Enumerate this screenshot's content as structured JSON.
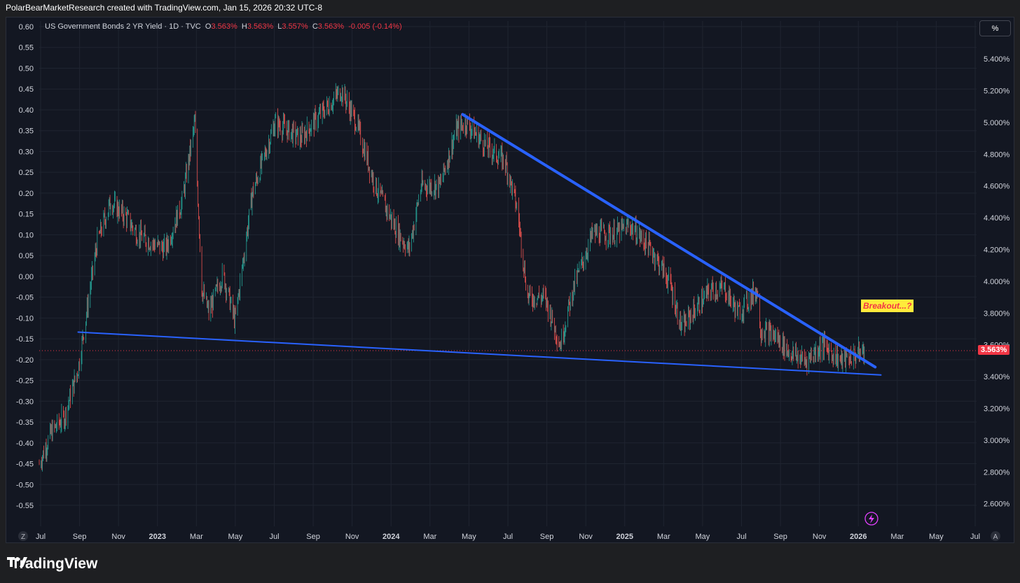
{
  "header": {
    "credit": "PolarBearMarketResearch created with TradingView.com, Jan 15, 2026 20:32 UTC-8"
  },
  "legend": {
    "symbol": "US Government Bonds 2 YR Yield · 1D · TVC",
    "o_label": "O",
    "o_value": "3.563%",
    "h_label": "H",
    "h_value": "3.563%",
    "l_label": "L",
    "l_value": "3.557%",
    "c_label": "C",
    "c_value": "3.563%",
    "change": "-0.005 (-0.14%)"
  },
  "scale_button": "%",
  "last_price_label": "3.563%",
  "annotation": "Breakout...?",
  "footer": {
    "brand": "TradingView"
  },
  "corner_left": "Z",
  "corner_right": "A",
  "colors": {
    "up": "#26a69a",
    "down": "#ef5350",
    "trendline": "#2962ff",
    "background": "#131722",
    "grid": "#1f2430",
    "price_line": "#f23645",
    "annotation_bg": "#ffeb3b"
  },
  "chart_data": {
    "type": "candlestick",
    "title": "",
    "xlabel": "",
    "ylabel": "",
    "y_left_ticks": [
      "0.60",
      "0.55",
      "0.50",
      "0.45",
      "0.40",
      "0.35",
      "0.30",
      "0.25",
      "0.20",
      "0.15",
      "0.10",
      "0.05",
      "0.00",
      "-0.05",
      "-0.10",
      "-0.15",
      "-0.20",
      "-0.25",
      "-0.30",
      "-0.35",
      "-0.40",
      "-0.45",
      "-0.50",
      "-0.55"
    ],
    "y_right_ticks": [
      "5.400%",
      "5.200%",
      "5.000%",
      "4.800%",
      "4.600%",
      "4.400%",
      "4.200%",
      "4.000%",
      "3.800%",
      "3.600%",
      "3.400%",
      "3.200%",
      "3.000%",
      "2.800%",
      "2.600%"
    ],
    "ylim": [
      2.55,
      5.55
    ],
    "x_ticks": [
      "Jul",
      "Sep",
      "Nov",
      "2023",
      "Mar",
      "May",
      "Jul",
      "Sep",
      "Nov",
      "2024",
      "Mar",
      "May",
      "Jul",
      "Sep",
      "Nov",
      "2025",
      "Mar",
      "May",
      "Jul",
      "Sep",
      "Nov",
      "2026",
      "Mar",
      "May",
      "Jul"
    ],
    "x_range": [
      "2022-07-01",
      "2026-07-10"
    ],
    "last_value": 3.563,
    "price_path": [
      [
        "2022-07-01",
        2.85
      ],
      [
        "2022-07-20",
        3.05
      ],
      [
        "2022-08-10",
        3.15
      ],
      [
        "2022-08-31",
        3.45
      ],
      [
        "2022-09-30",
        4.25
      ],
      [
        "2022-10-21",
        4.5
      ],
      [
        "2022-11-15",
        4.4
      ],
      [
        "2022-12-01",
        4.3
      ],
      [
        "2022-12-20",
        4.25
      ],
      [
        "2023-01-15",
        4.2
      ],
      [
        "2023-02-10",
        4.5
      ],
      [
        "2023-03-02",
        5.0
      ],
      [
        "2023-03-13",
        3.95
      ],
      [
        "2023-03-24",
        3.8
      ],
      [
        "2023-04-15",
        4.05
      ],
      [
        "2023-05-04",
        3.75
      ],
      [
        "2023-05-31",
        4.55
      ],
      [
        "2023-07-06",
        5.0
      ],
      [
        "2023-08-15",
        4.9
      ],
      [
        "2023-09-15",
        5.05
      ],
      [
        "2023-10-18",
        5.2
      ],
      [
        "2023-11-10",
        5.0
      ],
      [
        "2023-12-10",
        4.6
      ],
      [
        "2024-01-15",
        4.3
      ],
      [
        "2024-02-01",
        4.2
      ],
      [
        "2024-02-20",
        4.6
      ],
      [
        "2024-03-20",
        4.6
      ],
      [
        "2024-04-15",
        4.95
      ],
      [
        "2024-04-30",
        5.0
      ],
      [
        "2024-06-01",
        4.85
      ],
      [
        "2024-07-01",
        4.75
      ],
      [
        "2024-07-20",
        4.45
      ],
      [
        "2024-08-05",
        3.9
      ],
      [
        "2024-09-01",
        3.9
      ],
      [
        "2024-09-25",
        3.6
      ],
      [
        "2024-10-15",
        3.95
      ],
      [
        "2024-11-15",
        4.3
      ],
      [
        "2024-12-20",
        4.3
      ],
      [
        "2025-01-13",
        4.35
      ],
      [
        "2025-02-15",
        4.2
      ],
      [
        "2025-03-15",
        4.0
      ],
      [
        "2025-04-04",
        3.7
      ],
      [
        "2025-04-20",
        3.8
      ],
      [
        "2025-05-20",
        3.95
      ],
      [
        "2025-06-10",
        3.95
      ],
      [
        "2025-07-01",
        3.8
      ],
      [
        "2025-07-31",
        3.95
      ],
      [
        "2025-08-05",
        3.7
      ],
      [
        "2025-08-30",
        3.65
      ],
      [
        "2025-09-20",
        3.55
      ],
      [
        "2025-10-15",
        3.5
      ],
      [
        "2025-11-10",
        3.6
      ],
      [
        "2025-12-10",
        3.5
      ],
      [
        "2026-01-15",
        3.563
      ]
    ],
    "trendlines": [
      {
        "name": "",
        "start": [
          "2022-08-31",
          3.68
        ],
        "end": [
          "2026-02-10",
          3.41
        ]
      },
      {
        "name": "",
        "start": [
          "2024-04-25",
          5.05
        ],
        "end": [
          "2026-02-01",
          3.46
        ]
      }
    ],
    "grid": true,
    "legend": "top-left"
  }
}
